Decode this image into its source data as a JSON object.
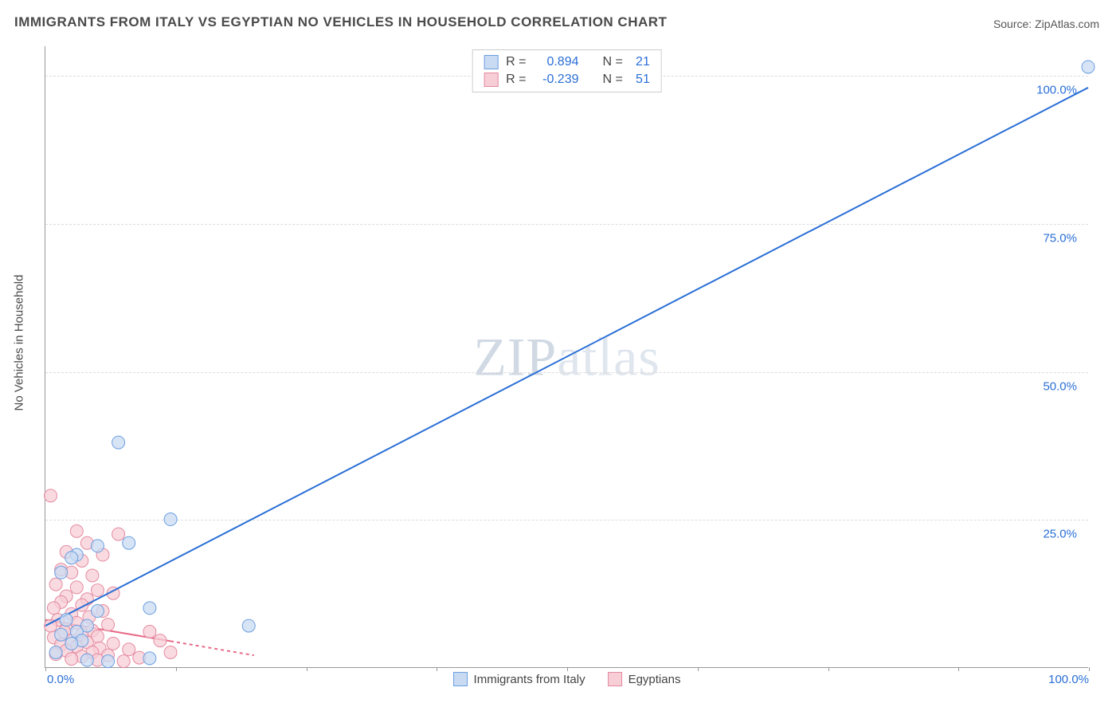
{
  "title": "IMMIGRANTS FROM ITALY VS EGYPTIAN NO VEHICLES IN HOUSEHOLD CORRELATION CHART",
  "source_label": "Source:",
  "source_value": "ZipAtlas.com",
  "watermark": "ZIPatlas",
  "ylabel": "No Vehicles in Household",
  "chart": {
    "type": "scatter-with-regression",
    "background_color": "#ffffff",
    "grid_color": "#dcdcdc",
    "axis_color": "#999999",
    "tick_color": "#2a6fd6",
    "label_color": "#4a4a4a",
    "title_fontsize": 17,
    "tick_fontsize": 15,
    "label_fontsize": 15,
    "xlim": [
      0,
      100
    ],
    "ylim": [
      0,
      105
    ],
    "y_gridlines": [
      25,
      50,
      75,
      100
    ],
    "y_tick_labels": [
      "25.0%",
      "50.0%",
      "75.0%",
      "100.0%"
    ],
    "x_tick_labels": {
      "0": "0.0%",
      "100": "100.0%"
    },
    "x_minor_ticks": [
      0,
      12.5,
      25,
      37.5,
      50,
      62.5,
      75,
      87.5,
      100
    ],
    "marker_radius": 8,
    "marker_stroke_width": 1,
    "line_width": 2
  },
  "series": {
    "italy": {
      "label": "Immigrants from Italy",
      "fill": "#c9dbf3",
      "stroke": "#6b9fe0",
      "line_color": "#2a6fd6",
      "line_dash": "none",
      "R": "0.894",
      "N": "21",
      "regression": {
        "x1": 0,
        "y1": 7,
        "x2": 100,
        "y2": 98
      },
      "points": [
        [
          100,
          101.5
        ],
        [
          7,
          38
        ],
        [
          12,
          25
        ],
        [
          8,
          21
        ],
        [
          5,
          20.5
        ],
        [
          3,
          19
        ],
        [
          2.5,
          18.5
        ],
        [
          1.5,
          16
        ],
        [
          10,
          10
        ],
        [
          5,
          9.5
        ],
        [
          2,
          8
        ],
        [
          19.5,
          7
        ],
        [
          4,
          7
        ],
        [
          3,
          6
        ],
        [
          1.5,
          5.5
        ],
        [
          3.5,
          4.5
        ],
        [
          2.5,
          4
        ],
        [
          1,
          2.5
        ],
        [
          10,
          1.5
        ],
        [
          4,
          1.2
        ],
        [
          6,
          1
        ]
      ]
    },
    "egypt": {
      "label": "Egyptians",
      "fill": "#f7cdd6",
      "stroke": "#e48aa0",
      "line_color": "#e86b88",
      "line_dash": "4,4",
      "line_solid_until_x": 12,
      "R": "-0.239",
      "N": "51",
      "regression": {
        "x1": 0,
        "y1": 8,
        "x2": 20,
        "y2": 2
      },
      "points": [
        [
          0.5,
          29
        ],
        [
          3,
          23
        ],
        [
          7,
          22.5
        ],
        [
          4,
          21
        ],
        [
          2,
          19.5
        ],
        [
          5.5,
          19
        ],
        [
          3.5,
          18
        ],
        [
          1.5,
          16.5
        ],
        [
          2.5,
          16
        ],
        [
          4.5,
          15.5
        ],
        [
          1,
          14
        ],
        [
          3,
          13.5
        ],
        [
          5,
          13
        ],
        [
          6.5,
          12.5
        ],
        [
          2,
          12
        ],
        [
          4,
          11.5
        ],
        [
          1.5,
          11
        ],
        [
          3.5,
          10.5
        ],
        [
          0.8,
          10
        ],
        [
          5.5,
          9.5
        ],
        [
          2.5,
          9
        ],
        [
          4.2,
          8.5
        ],
        [
          1.2,
          8
        ],
        [
          3,
          7.5
        ],
        [
          6,
          7.2
        ],
        [
          0.5,
          7
        ],
        [
          2,
          6.5
        ],
        [
          4.5,
          6.2
        ],
        [
          1.8,
          6
        ],
        [
          3.5,
          5.5
        ],
        [
          5,
          5.2
        ],
        [
          0.8,
          5
        ],
        [
          2.5,
          4.5
        ],
        [
          4,
          4.2
        ],
        [
          6.5,
          4
        ],
        [
          1.5,
          3.8
        ],
        [
          3,
          3.5
        ],
        [
          5.2,
          3.2
        ],
        [
          8,
          3
        ],
        [
          2,
          2.8
        ],
        [
          4.5,
          2.5
        ],
        [
          1,
          2.2
        ],
        [
          6,
          2
        ],
        [
          3.5,
          1.8
        ],
        [
          9,
          1.6
        ],
        [
          2.5,
          1.4
        ],
        [
          5,
          1.2
        ],
        [
          7.5,
          1
        ],
        [
          11,
          4.5
        ],
        [
          10,
          6
        ],
        [
          12,
          2.5
        ]
      ]
    }
  },
  "stat_legend": {
    "R_label": "R =",
    "N_label": "N ="
  }
}
